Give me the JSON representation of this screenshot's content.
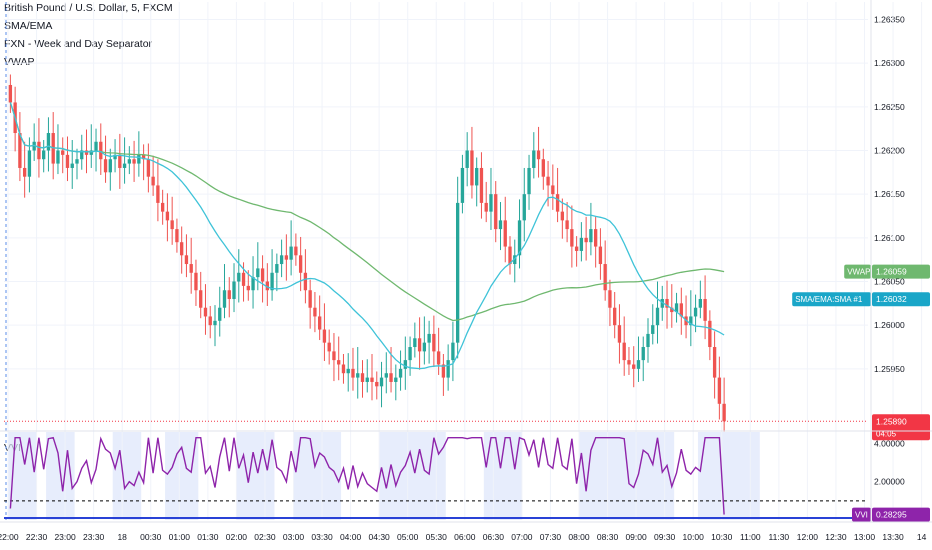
{
  "header": {
    "title": "British Pound / U.S. Dollar, 5, FXCM",
    "indicators": [
      "SMA/EMA",
      "FXN - Week and Day Separator",
      "VWAP"
    ]
  },
  "colors": {
    "up": "#26a69a",
    "down": "#ef5350",
    "vwap": "#6fb86f",
    "sma": "#3fc3d8",
    "vvi": "#8e24aa",
    "vvi_baseline": "#2942d6",
    "price_badge": "#f23645",
    "session_bg": "#dde6fb"
  },
  "chart_data": [
    {
      "type": "candlestick",
      "title": "British Pound / U.S. Dollar, 5, FXCM",
      "ylim": [
        1.2588,
        1.2637
      ],
      "y_ticks": [
        "1.26350",
        "1.26300",
        "1.26250",
        "1.26200",
        "1.26150",
        "1.26100",
        "1.26050",
        "1.26000",
        "1.25950"
      ],
      "x_ticks": [
        "22:00",
        "22:30",
        "23:00",
        "23:30",
        "18",
        "00:30",
        "01:00",
        "01:30",
        "02:00",
        "02:30",
        "03:00",
        "03:30",
        "04:00",
        "04:30",
        "05:00",
        "05:30",
        "06:00",
        "06:30",
        "07:00",
        "07:30",
        "08:00",
        "08:30",
        "09:00",
        "09:30",
        "10:00",
        "10:30",
        "11:00",
        "11:30",
        "12:00",
        "12:30",
        "13:00",
        "13:30",
        "14"
      ],
      "x_start": "22:00",
      "bar_minutes": 5,
      "close": [
        1.26255,
        1.2622,
        1.2618,
        1.2617,
        1.262,
        1.2621,
        1.2619,
        1.262,
        1.2622,
        1.26185,
        1.262,
        1.26195,
        1.2618,
        1.26185,
        1.2619,
        1.262,
        1.26195,
        1.262,
        1.2621,
        1.2619,
        1.26175,
        1.2619,
        1.26195,
        1.2618,
        1.26185,
        1.2619,
        1.26185,
        1.26195,
        1.2619,
        1.2617,
        1.2616,
        1.2614,
        1.2613,
        1.2612,
        1.2611,
        1.26095,
        1.2608,
        1.2607,
        1.2606,
        1.2604,
        1.2602,
        1.2601,
        1.26,
        1.26005,
        1.2602,
        1.2604,
        1.2603,
        1.2605,
        1.2606,
        1.26045,
        1.2604,
        1.26055,
        1.26065,
        1.2605,
        1.2604,
        1.2606,
        1.2607,
        1.2608,
        1.26075,
        1.2609,
        1.2608,
        1.2606,
        1.2604,
        1.2602,
        1.2601,
        1.25995,
        1.2598,
        1.2597,
        1.2596,
        1.25955,
        1.25945,
        1.2595,
        1.2594,
        1.25945,
        1.25935,
        1.2594,
        1.25935,
        1.2593,
        1.2594,
        1.25945,
        1.25935,
        1.2594,
        1.2595,
        1.2596,
        1.25975,
        1.25985,
        1.2597,
        1.2598,
        1.2599,
        1.2597,
        1.25955,
        1.2594,
        1.2596,
        1.2598,
        1.2614,
        1.2618,
        1.262,
        1.2616,
        1.2618,
        1.2614,
        1.2613,
        1.2615,
        1.2611,
        1.2612,
        1.2609,
        1.2607,
        1.2608,
        1.2612,
        1.2615,
        1.2618,
        1.262,
        1.2619,
        1.2617,
        1.2616,
        1.2615,
        1.2613,
        1.2612,
        1.2611,
        1.2609,
        1.26085,
        1.261,
        1.26095,
        1.2611,
        1.2609,
        1.2607,
        1.2604,
        1.2602,
        1.26,
        1.2598,
        1.2596,
        1.25955,
        1.2595,
        1.2596,
        1.25975,
        1.2599,
        1.26,
        1.2602,
        1.2603,
        1.2602,
        1.26015,
        1.26025,
        1.2601,
        1.26,
        1.2601,
        1.2602,
        1.2603,
        1.26005,
        1.25975,
        1.2594,
        1.2591,
        1.2589
      ],
      "series": [
        {
          "name": "VWAP",
          "values_start": 1.26225,
          "values_end": 1.26059
        },
        {
          "name": "SMA/EMA:SMA #1",
          "values_start": 1.2625,
          "values_end": 1.26032
        }
      ],
      "last_price": "1.25890",
      "countdown": "04:05",
      "badges": [
        {
          "label": "VWAP",
          "value": "1.26059"
        },
        {
          "label": "SMA/EMA:SMA #1",
          "value": "1.26032"
        }
      ]
    },
    {
      "type": "line",
      "title": "VVI",
      "ylim": [
        0.0,
        4.6
      ],
      "y_ticks": [
        "4.00000",
        "2.00000"
      ],
      "threshold": 1.0,
      "baseline": 0.0,
      "last_value": "0.28295",
      "label": "VVI",
      "peaks": [
        {
          "time": "23:20",
          "value": 3.1
        },
        {
          "time": "23:50",
          "value": 2.7
        },
        {
          "time": "07:00",
          "value": 4.2
        },
        {
          "time": "07:05",
          "value": 3.4
        }
      ]
    }
  ]
}
